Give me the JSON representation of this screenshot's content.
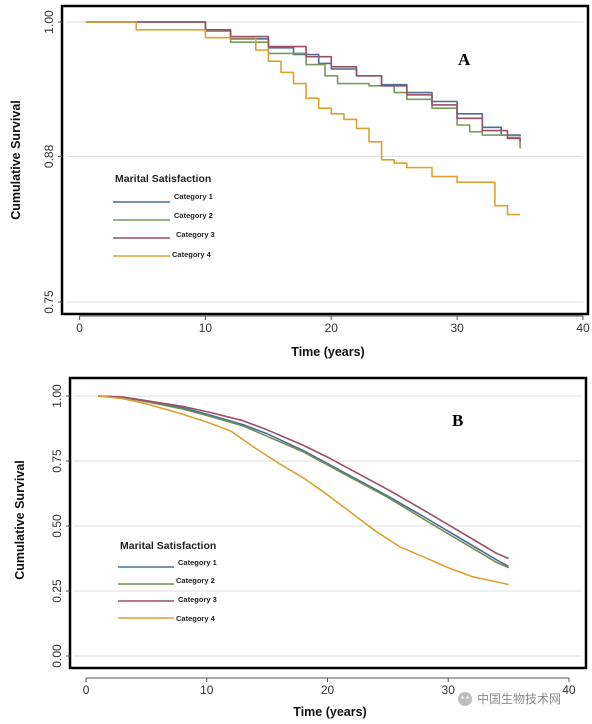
{
  "chart_data": [
    {
      "type": "line",
      "panel_label": "A",
      "xlabel": "Time (years)",
      "ylabel": "Cumulative Survival",
      "xlim": [
        -1,
        40
      ],
      "ylim": [
        0.75,
        1.0
      ],
      "x_ticks": [
        0,
        10,
        20,
        30,
        40
      ],
      "y_ticks": [
        0.75,
        0.88,
        1.0
      ],
      "y_tick_labels": [
        "0.75",
        "0.88",
        "1.00"
      ],
      "grid": "horizontal",
      "legend_title": "Marital Satisfaction",
      "legend_position": "left",
      "step": true,
      "series": [
        {
          "name": "Category 1",
          "color": "#4a6f94",
          "x": [
            0.5,
            5,
            10,
            12,
            15,
            17,
            19,
            20,
            22,
            24,
            26,
            28,
            30,
            32,
            33.5,
            35
          ],
          "y": [
            1.0,
            1.0,
            0.992,
            0.985,
            0.977,
            0.971,
            0.963,
            0.958,
            0.952,
            0.944,
            0.937,
            0.929,
            0.918,
            0.906,
            0.899,
            0.898
          ]
        },
        {
          "name": "Category 2",
          "color": "#7a9a5a",
          "x": [
            0.5,
            5,
            10,
            12,
            15,
            18,
            19.5,
            20.5,
            23,
            25,
            26,
            28,
            30,
            31,
            32,
            34,
            35
          ],
          "y": [
            1.0,
            1.0,
            0.992,
            0.982,
            0.972,
            0.962,
            0.952,
            0.945,
            0.943,
            0.937,
            0.931,
            0.923,
            0.908,
            0.902,
            0.899,
            0.897,
            0.887
          ]
        },
        {
          "name": "Category 3",
          "color": "#9b4f67",
          "x": [
            0.5,
            5,
            10,
            12,
            15,
            18,
            20,
            22,
            24,
            26,
            28,
            30,
            32,
            34,
            35
          ],
          "y": [
            1.0,
            1.0,
            0.993,
            0.987,
            0.978,
            0.969,
            0.96,
            0.952,
            0.943,
            0.935,
            0.926,
            0.914,
            0.903,
            0.896,
            0.893
          ]
        },
        {
          "name": "Category 4",
          "color": "#e0a030",
          "x": [
            0.5,
            4.5,
            10,
            14,
            15,
            16,
            17,
            18,
            19,
            20,
            21,
            22,
            23,
            24,
            25,
            26,
            27,
            28,
            29,
            30,
            31,
            32,
            33,
            34,
            35
          ],
          "y": [
            1.0,
            0.993,
            0.986,
            0.975,
            0.965,
            0.955,
            0.945,
            0.932,
            0.923,
            0.918,
            0.913,
            0.905,
            0.893,
            0.877,
            0.874,
            0.87,
            0.87,
            0.862,
            0.862,
            0.857,
            0.857,
            0.857,
            0.836,
            0.828,
            0.828
          ]
        }
      ]
    },
    {
      "type": "line",
      "panel_label": "B",
      "xlabel": "Time (years)",
      "ylabel": "Cumulative Survival",
      "xlim": [
        -1,
        41
      ],
      "ylim": [
        0.0,
        1.0
      ],
      "x_ticks": [
        0,
        10,
        20,
        30,
        40
      ],
      "y_ticks": [
        0.0,
        0.25,
        0.5,
        0.75,
        1.0
      ],
      "y_tick_labels": [
        "0.00",
        "0.25",
        "0.50",
        "0.75",
        "1.00"
      ],
      "grid": "horizontal",
      "legend_title": "Marital Satisfaction",
      "legend_position": "lower-left",
      "step": false,
      "series": [
        {
          "name": "Category 1",
          "color": "#4a6f94",
          "x": [
            1,
            3,
            5,
            8,
            10,
            13,
            15,
            18,
            20,
            22,
            25,
            28,
            30,
            32,
            34,
            35
          ],
          "y": [
            1.0,
            0.995,
            0.98,
            0.955,
            0.93,
            0.89,
            0.855,
            0.79,
            0.74,
            0.69,
            0.615,
            0.535,
            0.48,
            0.425,
            0.37,
            0.345
          ]
        },
        {
          "name": "Category 2",
          "color": "#6f8f52",
          "x": [
            1,
            3,
            5,
            8,
            10,
            13,
            15,
            18,
            20,
            22,
            25,
            28,
            30,
            32,
            34,
            35
          ],
          "y": [
            1.0,
            0.995,
            0.978,
            0.95,
            0.925,
            0.885,
            0.845,
            0.785,
            0.735,
            0.685,
            0.61,
            0.525,
            0.47,
            0.415,
            0.36,
            0.34
          ]
        },
        {
          "name": "Category 3",
          "color": "#9b4f67",
          "x": [
            1,
            3,
            5,
            8,
            10,
            13,
            15,
            18,
            20,
            22,
            25,
            28,
            30,
            32,
            34,
            35
          ],
          "y": [
            1.0,
            0.996,
            0.982,
            0.96,
            0.94,
            0.905,
            0.87,
            0.81,
            0.765,
            0.715,
            0.64,
            0.56,
            0.505,
            0.45,
            0.395,
            0.375
          ]
        },
        {
          "name": "Category 4",
          "color": "#e0a030",
          "x": [
            1,
            3,
            5,
            8,
            10,
            12,
            14,
            16,
            18,
            20,
            22,
            24,
            26,
            28,
            30,
            32,
            34,
            35
          ],
          "y": [
            1.0,
            0.99,
            0.97,
            0.93,
            0.9,
            0.865,
            0.8,
            0.74,
            0.685,
            0.62,
            0.55,
            0.48,
            0.42,
            0.38,
            0.34,
            0.305,
            0.285,
            0.275
          ]
        }
      ]
    }
  ],
  "watermark": "中国生物技术网"
}
